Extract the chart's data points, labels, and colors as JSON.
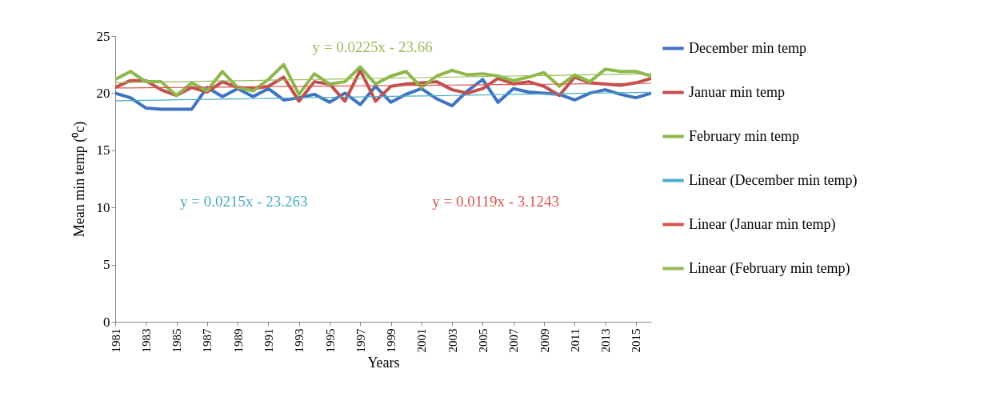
{
  "chart_data": {
    "type": "line",
    "xlabel": "Years",
    "ylabel": "Mean min temp (⁰c)",
    "x": [
      1981,
      1982,
      1983,
      1984,
      1985,
      1986,
      1987,
      1988,
      1989,
      1990,
      1991,
      1992,
      1993,
      1994,
      1995,
      1996,
      1997,
      1998,
      1999,
      2000,
      2001,
      2002,
      2003,
      2004,
      2005,
      2006,
      2007,
      2008,
      2009,
      2010,
      2011,
      2012,
      2013,
      2014,
      2015,
      2016
    ],
    "series": [
      {
        "name": "December min temp",
        "color": "#3f74c2",
        "values": [
          20.0,
          19.6,
          18.7,
          18.6,
          18.6,
          18.6,
          20.5,
          19.7,
          20.4,
          19.7,
          20.4,
          19.4,
          19.6,
          19.9,
          19.2,
          20.0,
          19.0,
          20.6,
          19.2,
          19.9,
          20.4,
          19.5,
          18.9,
          20.2,
          21.2,
          19.2,
          20.4,
          20.1,
          20.0,
          19.9,
          19.4,
          20.0,
          20.3,
          19.9,
          19.6,
          20.0
        ]
      },
      {
        "name": "Januar min temp",
        "color": "#c0504d",
        "values": [
          20.5,
          21.1,
          21.1,
          20.3,
          19.8,
          20.5,
          20.1,
          21.0,
          20.5,
          20.4,
          20.6,
          21.4,
          19.3,
          21.0,
          20.8,
          19.3,
          22.0,
          19.3,
          20.6,
          20.8,
          20.9,
          21.0,
          20.3,
          20.0,
          20.4,
          21.3,
          20.8,
          21.0,
          20.6,
          19.8,
          21.4,
          20.9,
          20.8,
          20.7,
          20.9,
          21.3
        ]
      },
      {
        "name": "February min temp",
        "color": "#8db84a",
        "values": [
          21.2,
          21.9,
          21.0,
          21.0,
          19.8,
          20.9,
          20.2,
          21.9,
          20.5,
          20.2,
          21.2,
          22.5,
          19.9,
          21.7,
          20.8,
          21.0,
          22.3,
          20.8,
          21.5,
          21.9,
          20.5,
          21.5,
          22.0,
          21.6,
          21.7,
          21.5,
          21.1,
          21.4,
          21.8,
          20.6,
          21.6,
          21.0,
          22.1,
          21.9,
          21.9,
          21.5
        ]
      },
      {
        "name": "Linear (December min temp)",
        "type": "line",
        "color": "#4bacc6",
        "values": [
          19.33,
          19.35,
          19.37,
          19.39,
          19.42,
          19.44,
          19.46,
          19.48,
          19.5,
          19.52,
          19.55,
          19.57,
          19.59,
          19.61,
          19.63,
          19.65,
          19.67,
          19.7,
          19.72,
          19.74,
          19.76,
          19.78,
          19.8,
          19.82,
          19.85,
          19.87,
          19.89,
          19.91,
          19.93,
          19.95,
          19.98,
          20.0,
          20.02,
          20.04,
          20.06,
          20.08
        ]
      },
      {
        "name": "Linear (Januar min temp)",
        "type": "line",
        "color": "#d9534f",
        "values": [
          20.45,
          20.46,
          20.47,
          20.49,
          20.5,
          20.51,
          20.52,
          20.53,
          20.55,
          20.56,
          20.57,
          20.58,
          20.59,
          20.6,
          20.62,
          20.63,
          20.64,
          20.65,
          20.66,
          20.68,
          20.69,
          20.7,
          20.71,
          20.72,
          20.74,
          20.75,
          20.76,
          20.77,
          20.78,
          20.8,
          20.81,
          20.82,
          20.83,
          20.84,
          20.85,
          20.87
        ]
      },
      {
        "name": "Linear (February min temp)",
        "type": "line",
        "color": "#9bbb59",
        "values": [
          20.91,
          20.93,
          20.96,
          20.98,
          21.0,
          21.02,
          21.05,
          21.07,
          21.09,
          21.11,
          21.14,
          21.16,
          21.18,
          21.2,
          21.23,
          21.25,
          21.27,
          21.29,
          21.32,
          21.34,
          21.36,
          21.38,
          21.41,
          21.43,
          21.45,
          21.47,
          21.5,
          21.52,
          21.54,
          21.56,
          21.59,
          21.61,
          21.63,
          21.65,
          21.68,
          21.7
        ]
      }
    ],
    "annotations": [
      "y = 0.0215x - 23.263",
      "y = 0.0119x - 3.1243",
      "y = 0.0225x - 23.66"
    ],
    "xlim": [
      1981,
      2016
    ],
    "xticks": [
      1981,
      1983,
      1985,
      1987,
      1989,
      1991,
      1993,
      1995,
      1997,
      1999,
      2001,
      2003,
      2005,
      2007,
      2009,
      2011,
      2013,
      2015
    ],
    "ylim": [
      0,
      25
    ],
    "yticks": [
      0,
      5,
      10,
      15,
      20,
      25
    ],
    "grid": false,
    "legend": "right",
    "marker": "none",
    "line_style": "solid"
  }
}
